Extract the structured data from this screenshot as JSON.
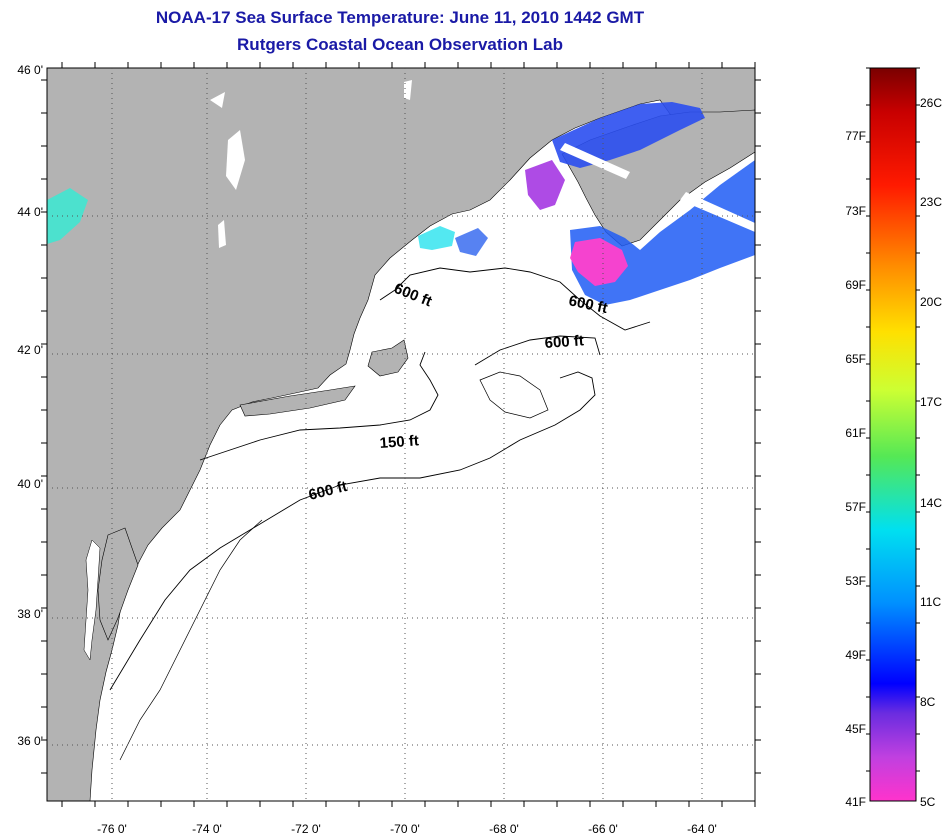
{
  "title": {
    "line1": "NOAA-17 Sea Surface Temperature:  June 11, 2010 1442 GMT",
    "line2": "Rutgers Coastal Ocean Observation Lab"
  },
  "map": {
    "lon_labels": [
      "-76 0'",
      "-74 0'",
      "-72 0'",
      "-70 0'",
      "-68 0'",
      "-66 0'",
      "-64 0'"
    ],
    "lat_labels": [
      "46 0'",
      "44 0'",
      "42 0'",
      "40 0'",
      "38 0'",
      "36 0'"
    ],
    "contour_labels": [
      "600 ft",
      "600 ft",
      "600 ft",
      "150 ft",
      "600 ft"
    ],
    "colors": {
      "land": "#b3b3b3",
      "ocean": "#ffffff",
      "grid": "#555555"
    }
  },
  "colorbar": {
    "fahrenheit": [
      "77F",
      "73F",
      "69F",
      "65F",
      "61F",
      "57F",
      "53F",
      "49F",
      "45F",
      "41F"
    ],
    "celsius": [
      "26C",
      "23C",
      "20C",
      "17C",
      "14C",
      "11C",
      "8C",
      "5C"
    ]
  }
}
